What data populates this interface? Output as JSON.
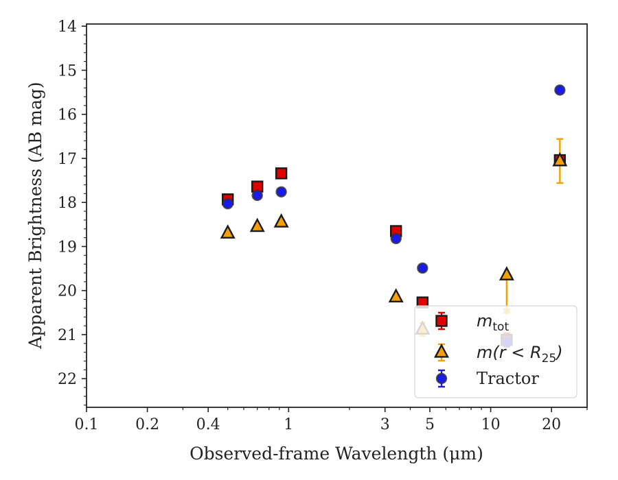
{
  "chart_data": {
    "type": "scatter",
    "xlabel": "Observed-frame Wavelength (μm)",
    "ylabel": "Apparent Brightness (AB mag)",
    "x_scale": "log",
    "xlim": [
      0.1,
      30
    ],
    "ylim": [
      22.65,
      13.95
    ],
    "y_inverted": true,
    "grid": false,
    "legend_position": "lower-right",
    "x_ticks": [
      {
        "value": 0.1,
        "label": "0.1"
      },
      {
        "value": 0.2,
        "label": "0.2"
      },
      {
        "value": 0.4,
        "label": "0.4"
      },
      {
        "value": 1,
        "label": "1"
      },
      {
        "value": 3,
        "label": "3"
      },
      {
        "value": 5,
        "label": "5"
      },
      {
        "value": 10,
        "label": "10"
      },
      {
        "value": 20,
        "label": "20"
      }
    ],
    "y_ticks": [
      {
        "value": 14,
        "label": "14"
      },
      {
        "value": 15,
        "label": "15"
      },
      {
        "value": 16,
        "label": "16"
      },
      {
        "value": 17,
        "label": "17"
      },
      {
        "value": 18,
        "label": "18"
      },
      {
        "value": 19,
        "label": "19"
      },
      {
        "value": 20,
        "label": "20"
      },
      {
        "value": 21,
        "label": "21"
      },
      {
        "value": 22,
        "label": "22"
      }
    ],
    "series": [
      {
        "name": "m_tot",
        "legend_label": "m",
        "legend_subscript": "tot",
        "marker": "square",
        "color": "#e00000",
        "edge_color": "#1a1a1a",
        "errbar_color": "#e00000",
        "points": [
          {
            "x": 0.5,
            "y": 17.93,
            "err": 0.05
          },
          {
            "x": 0.7,
            "y": 17.64,
            "err": 0.05
          },
          {
            "x": 0.92,
            "y": 17.34,
            "err": 0.05
          },
          {
            "x": 3.4,
            "y": 18.65,
            "err": 0.05
          },
          {
            "x": 4.6,
            "y": 20.27,
            "err": 0.05
          },
          {
            "x": 12,
            "y": 21.12,
            "err": 0.15
          },
          {
            "x": 22,
            "y": 17.04,
            "err": 0.1
          }
        ]
      },
      {
        "name": "m(r < R25)",
        "legend_label": "m(r < R",
        "legend_subscript": "25",
        "legend_suffix": ")",
        "marker": "triangle",
        "color": "#f5a000",
        "edge_color": "#1a1a1a",
        "errbar_color": "#f5a000",
        "points": [
          {
            "x": 0.5,
            "y": 18.7,
            "err": 0.05
          },
          {
            "x": 0.7,
            "y": 18.55,
            "err": 0.05
          },
          {
            "x": 0.92,
            "y": 18.45,
            "err": 0.05
          },
          {
            "x": 3.4,
            "y": 20.15,
            "err": 0.05
          },
          {
            "x": 4.6,
            "y": 20.88,
            "err": 0.15
          },
          {
            "x": 12,
            "y": 19.65,
            "err_low": 0,
            "err_high": 0.85
          },
          {
            "x": 22,
            "y": 17.06,
            "err": 0.5
          }
        ]
      },
      {
        "name": "Tractor",
        "legend_label": "Tractor",
        "marker": "circle",
        "color": "#1a1aee",
        "edge_color": "#333333",
        "errbar_color": "#1a1aee",
        "points": [
          {
            "x": 0.5,
            "y": 18.03,
            "err": 0.05
          },
          {
            "x": 0.7,
            "y": 17.84,
            "err": 0.05
          },
          {
            "x": 0.92,
            "y": 17.76,
            "err": 0.05
          },
          {
            "x": 3.4,
            "y": 18.82,
            "err": 0.05
          },
          {
            "x": 4.6,
            "y": 19.49,
            "err": 0.05
          },
          {
            "x": 12,
            "y": 21.17,
            "err": 0.1
          },
          {
            "x": 22,
            "y": 15.45,
            "err": 0.05
          }
        ]
      }
    ]
  }
}
